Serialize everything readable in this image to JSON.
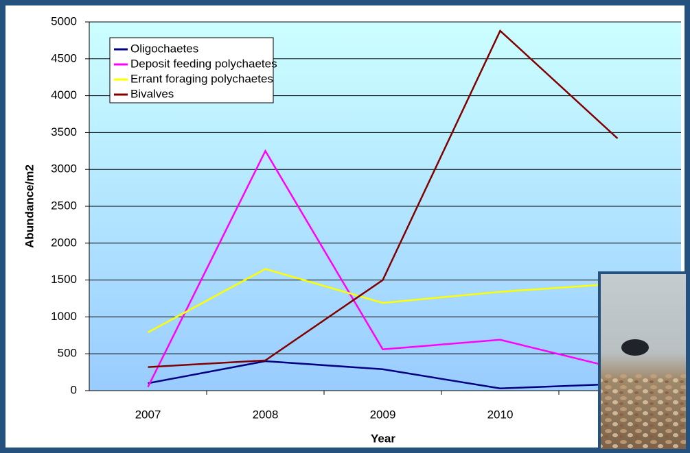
{
  "chart_data": {
    "type": "line",
    "categories": [
      "2007",
      "2008",
      "2009",
      "2010",
      null
    ],
    "series": [
      {
        "name": "Oligochaetes",
        "color": "#000080",
        "values": [
          100,
          400,
          290,
          30,
          90
        ]
      },
      {
        "name": "Deposit feeding polychaetes",
        "color": "#ff00ff",
        "values": [
          50,
          3250,
          560,
          690,
          300
        ]
      },
      {
        "name": "Errant foraging polychaetes",
        "color": "#ffff00",
        "values": [
          790,
          1650,
          1190,
          1340,
          1450
        ]
      },
      {
        "name": "Bivalves",
        "color": "#800000",
        "values": [
          320,
          410,
          1500,
          4880,
          3420
        ]
      }
    ],
    "x_label": "Year",
    "y_label": "Abundance/m2",
    "ylim": [
      0,
      5000
    ],
    "yticks": [
      0,
      500,
      1000,
      1500,
      2000,
      2500,
      3000,
      3500,
      4000,
      4500,
      5000
    ],
    "grid": true,
    "legend": "upper left"
  }
}
